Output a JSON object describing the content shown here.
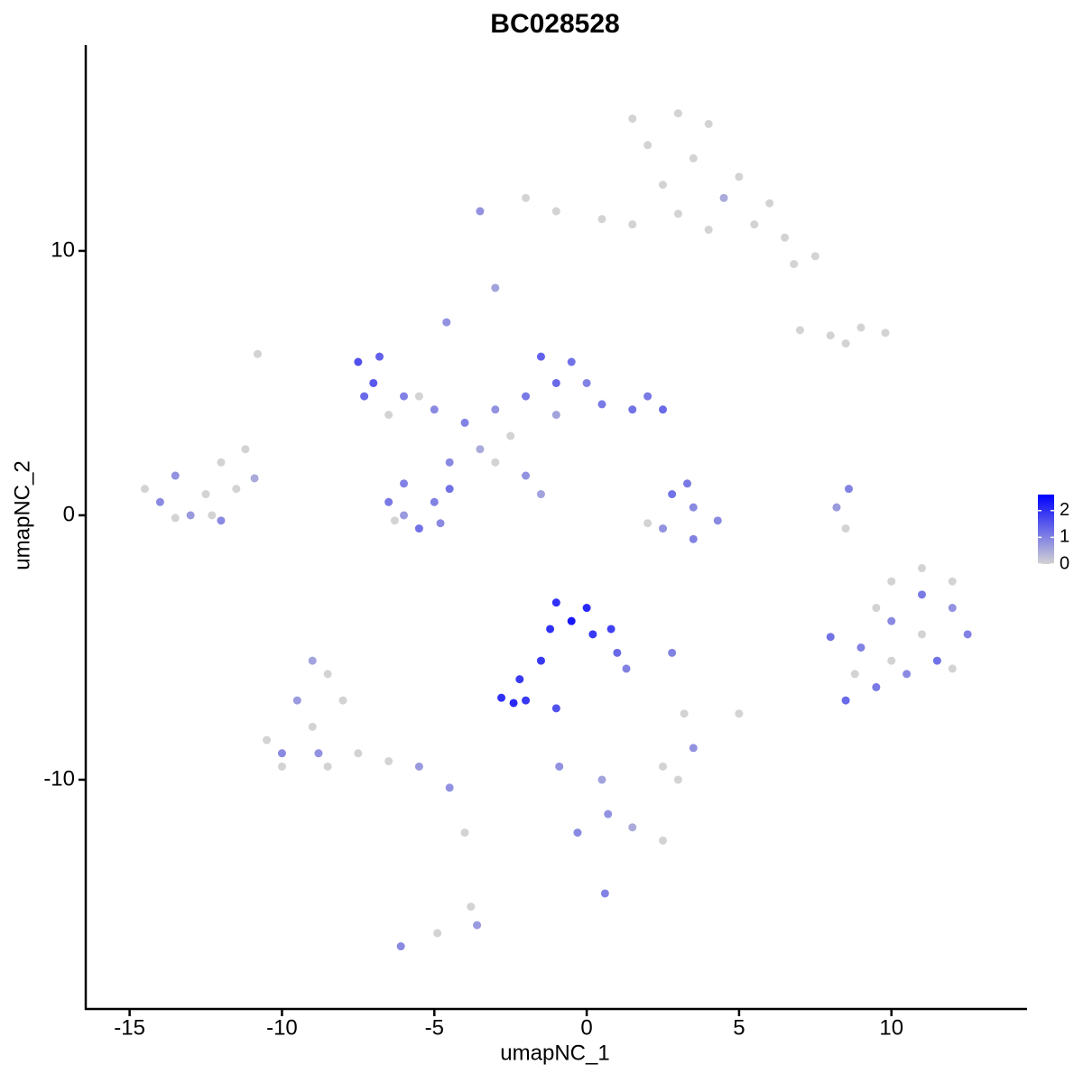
{
  "chart_data": {
    "type": "scatter",
    "title": "BC028528",
    "x_label": "umapNC_1",
    "y_label": "umapNC_2",
    "xlim": [
      -16.44,
      14.45
    ],
    "ylim": [
      -18.67,
      17.78
    ],
    "xticks": [
      -15,
      -10,
      -5,
      0,
      5,
      10
    ],
    "yticks": [
      -10,
      0,
      10
    ],
    "colorbar": {
      "lim": [
        0,
        2.6
      ],
      "ticks": [
        0,
        1,
        2
      ],
      "low": "#d3d3d3",
      "high": "#0000ff"
    },
    "x": [
      1.5,
      3,
      4,
      2,
      3.5,
      5,
      2.5,
      4.5,
      6,
      5.5,
      6.5,
      7.5,
      6.8,
      -2,
      -1,
      0.5,
      1.5,
      3,
      4,
      -3.5,
      -3,
      7,
      8,
      9,
      9.8,
      8.5,
      -4.6,
      -10.8,
      -7.5,
      -7,
      -6.8,
      -7.3,
      -6,
      -5,
      -4,
      -3,
      -2,
      -1,
      -1.5,
      -0.5,
      0,
      0.5,
      1.5,
      2.5,
      2,
      -1,
      -3.5,
      -4.5,
      -6,
      -6.5,
      -5.5,
      -6,
      -5,
      -4.5,
      -4.8,
      -2,
      -1.5,
      -6.5,
      -5.5,
      -2.5,
      -3,
      -6.3,
      2.8,
      3.5,
      2.5,
      3.5,
      2,
      4.3,
      3.3,
      8.6,
      8.2,
      8.5,
      8,
      9,
      10,
      11,
      12,
      12.5,
      11.5,
      10.5,
      9.5,
      8.5,
      10,
      11,
      12,
      9.5,
      11,
      12,
      10,
      8.8,
      -1,
      0,
      -0.5,
      -1.2,
      0.2,
      0.8,
      1,
      1.3,
      -1.5,
      -2.2,
      -2.8,
      -2.4,
      -2,
      -1,
      2.8,
      -10.5,
      -10,
      -9,
      -8.5,
      -8.5,
      -9,
      -8,
      -7.5,
      -6.5,
      -5.5,
      -4.5,
      -10,
      -8.8,
      -9.5,
      -3.8,
      -3.6,
      -4,
      -4.9,
      -6.1,
      2.5,
      3.5,
      3,
      3.2,
      5,
      0.5,
      0.7,
      1.5,
      2.5,
      -0.9,
      -0.3,
      0.6,
      -14.5,
      -13.5,
      -12.5,
      -12,
      -11.5,
      -13,
      -12.3,
      -11.2,
      -10.9,
      -14,
      -13.5,
      -12
    ],
    "y": [
      15,
      15.2,
      14.8,
      14,
      13.5,
      12.8,
      12.5,
      12,
      11.8,
      11,
      10.5,
      9.8,
      9.5,
      12,
      11.5,
      11.2,
      11,
      11.4,
      10.8,
      11.5,
      8.6,
      7,
      6.8,
      7.1,
      6.9,
      6.5,
      7.3,
      6.1,
      5.8,
      5,
      6,
      4.5,
      4.5,
      4,
      3.5,
      4,
      4.5,
      5,
      6,
      5.8,
      5,
      4.2,
      4,
      4,
      4.5,
      3.8,
      2.5,
      2,
      1.2,
      0.5,
      -0.5,
      0,
      0.5,
      1,
      -0.3,
      1.5,
      0.8,
      3.8,
      4.5,
      3,
      2,
      -0.2,
      0.8,
      0.3,
      -0.5,
      -0.9,
      -0.3,
      -0.2,
      1.2,
      1,
      0.3,
      -0.5,
      -4.6,
      -5,
      -4,
      -3,
      -3.5,
      -4.5,
      -5.5,
      -6,
      -6.5,
      -7,
      -2.5,
      -2,
      -2.5,
      -3.5,
      -4.5,
      -5.8,
      -5.5,
      -6,
      -3.3,
      -3.5,
      -4,
      -4.3,
      -4.5,
      -4.3,
      -5.2,
      -5.8,
      -5.5,
      -6.2,
      -6.9,
      -7.1,
      -7,
      -7.3,
      -5.2,
      -8.5,
      -9.5,
      -8,
      -9.5,
      -6,
      -5.5,
      -7,
      -9,
      -9.3,
      -9.5,
      -10.3,
      -9,
      -9,
      -7,
      -14.8,
      -15.5,
      -12,
      -15.8,
      -16.3,
      -9.5,
      -8.8,
      -10,
      -7.5,
      -7.5,
      -10,
      -11.3,
      -11.8,
      -12.3,
      -9.5,
      -12,
      -14.3,
      1,
      1.5,
      0.8,
      2,
      1,
      0,
      0,
      2.5,
      1.4,
      0.5,
      -0.1,
      -0.2
    ],
    "expression": [
      0,
      0,
      0,
      0,
      0,
      0,
      0,
      0.5,
      0,
      0,
      0,
      0,
      0,
      0,
      0,
      0,
      0,
      0,
      0,
      0.8,
      0.6,
      0,
      0,
      0,
      0,
      0,
      0.8,
      0,
      1.6,
      1.5,
      1.4,
      1.3,
      1,
      0.9,
      1,
      0.8,
      1.1,
      1.3,
      1.4,
      1.2,
      1,
      1.1,
      1.2,
      1.3,
      1.1,
      0.6,
      0.5,
      0.9,
      1,
      1.1,
      1.2,
      0.7,
      1,
      1.2,
      0.9,
      0.8,
      0.6,
      0,
      0,
      0,
      0,
      0,
      1.2,
      0.9,
      0.8,
      1,
      0,
      0.9,
      1.1,
      1,
      0.7,
      0,
      1.2,
      1,
      0.9,
      1.1,
      0.8,
      1,
      1.2,
      0.9,
      1.1,
      1.3,
      0,
      0,
      0,
      0,
      0,
      0,
      0,
      0,
      2,
      2.1,
      2.3,
      2,
      1.9,
      1.8,
      1.3,
      1,
      1.9,
      1.9,
      2,
      2.1,
      1.9,
      1.6,
      1,
      0,
      0,
      0,
      0,
      0,
      0.6,
      0,
      0,
      0,
      0.7,
      0.8,
      0.9,
      0.8,
      0.7,
      0,
      0.7,
      0,
      0,
      0.9,
      0,
      0.8,
      0,
      0,
      0,
      0.6,
      0.8,
      0.5,
      0,
      0.8,
      0.9,
      1,
      0,
      0.8,
      0,
      0,
      0,
      0.7,
      0,
      0,
      0.5,
      0.9,
      0,
      0.9
    ]
  }
}
